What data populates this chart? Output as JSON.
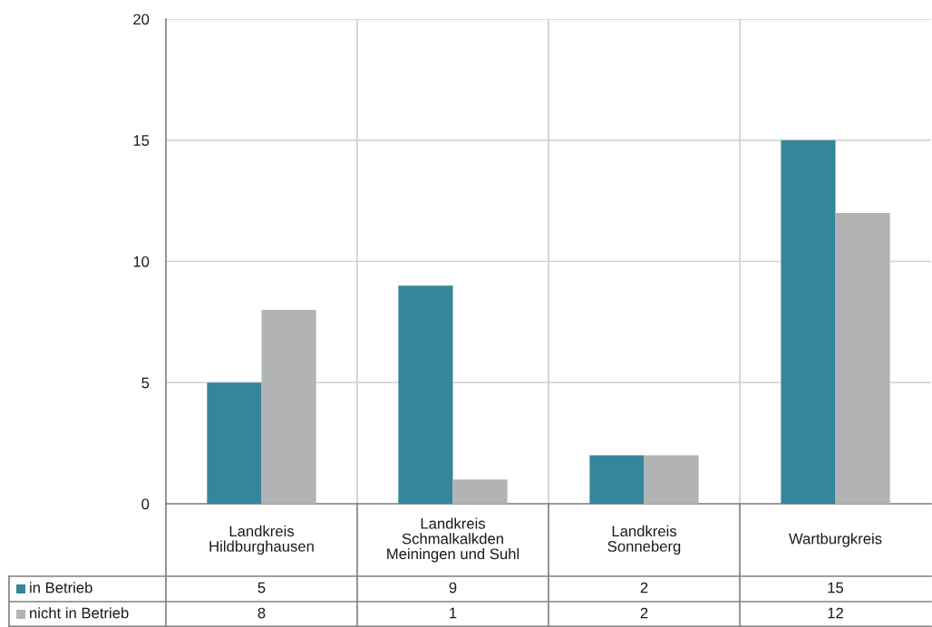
{
  "chart_data": {
    "type": "bar",
    "categories": [
      "Landkreis\nHildburghausen",
      "Landkreis\nSchmalkalkden\nMeiningen und Suhl",
      "Landkreis\nSonneberg",
      "Wartburgkreis"
    ],
    "series": [
      {
        "name": "in Betrieb",
        "color": "#35869b",
        "values": [
          5,
          9,
          2,
          15
        ]
      },
      {
        "name": "nicht in Betrieb",
        "color": "#b1b3b4",
        "values": [
          8,
          1,
          2,
          12
        ]
      }
    ],
    "ylim": [
      0,
      20
    ],
    "yticks": [
      0,
      5,
      10,
      15,
      20
    ],
    "grid": true,
    "legend": "bottom",
    "data_labels": true
  }
}
